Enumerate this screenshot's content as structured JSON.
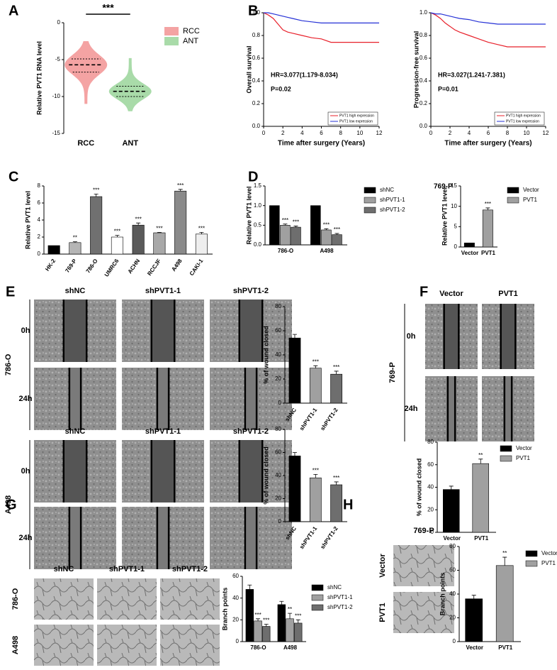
{
  "panels": [
    "A",
    "B",
    "C",
    "D",
    "E",
    "F",
    "G",
    "H"
  ],
  "image_panels": [
    {
      "columns": [
        "shNC",
        "shPVT1-1",
        "shPVT1-2"
      ],
      "rows": [
        "0h",
        "24h"
      ],
      "side_label": "786-O"
    },
    {
      "columns": [
        "shNC",
        "shPVT1-1",
        "shPVT1-2"
      ],
      "rows": [
        "0h",
        "24h"
      ],
      "side_label": "A498"
    },
    {
      "columns": [
        "Vector",
        "PVT1"
      ],
      "rows": [
        "0h",
        "24h"
      ],
      "side_label": "769-P"
    },
    {
      "columns": [
        "shNC",
        "shPVT1-1",
        "shPVT1-2"
      ],
      "rows": [
        "786-O",
        "A498"
      ]
    },
    {
      "title": "769-P",
      "rows": [
        "Vector",
        "PVT1"
      ]
    }
  ],
  "chart_data": [
    {
      "type": "violin",
      "ylabel": "Relative PVT1 RNA level",
      "categories": [
        "RCC",
        "ANT"
      ],
      "annotation": "***",
      "series": [
        {
          "name": "RCC",
          "color": "#f4a3a3",
          "min": -11,
          "q1": -6.7,
          "median": -5.7,
          "q3": -4.9,
          "max": -2.5
        },
        {
          "name": "ANT",
          "color": "#a9dba9",
          "min": -12,
          "q1": -10,
          "median": -9.3,
          "q3": -8.6,
          "max": -4.8
        }
      ],
      "ylim": [
        -15,
        0
      ],
      "yticks": [
        -15,
        -10,
        -5,
        0
      ]
    },
    {
      "type": "line",
      "ylabel": "Overall survival",
      "xlabel": "Time after surgery (Years)",
      "annotations": [
        "HR=3.077(1.179-8.034)",
        "P=0.02"
      ],
      "x": [
        0,
        0.5,
        1,
        1.5,
        2,
        2.5,
        3,
        4,
        5,
        6,
        7,
        8,
        10,
        12
      ],
      "series": [
        {
          "name": "PVT1 high expression",
          "color": "#e8202a",
          "values": [
            1,
            0.98,
            0.95,
            0.9,
            0.85,
            0.83,
            0.82,
            0.8,
            0.78,
            0.77,
            0.74,
            0.74,
            0.74,
            0.74
          ]
        },
        {
          "name": "PVT1 low expression",
          "color": "#2531d6",
          "values": [
            1,
            1,
            0.99,
            0.98,
            0.97,
            0.96,
            0.95,
            0.93,
            0.92,
            0.91,
            0.91,
            0.91,
            0.91,
            0.91
          ]
        }
      ],
      "xlim": [
        0,
        12
      ],
      "xticks": [
        0,
        2,
        4,
        6,
        8,
        10,
        12
      ],
      "ylim": [
        0,
        1
      ],
      "yticks": [
        {
          "value": 0,
          "label": "0.0"
        },
        {
          "value": 0.2,
          "label": "0.2"
        },
        {
          "value": 0.4,
          "label": "0.4"
        },
        {
          "value": 0.6,
          "label": "0.6"
        },
        {
          "value": 0.8,
          "label": "0.8"
        },
        {
          "value": 1,
          "label": "1.0"
        }
      ]
    },
    {
      "type": "line",
      "ylabel": "Progression-free survival",
      "xlabel": "Time after surgery (Years)",
      "annotations": [
        "HR=3.027(1.241-7.381)",
        "P=0.01"
      ],
      "x": [
        0,
        0.5,
        1,
        1.5,
        2,
        2.5,
        3,
        4,
        5,
        6,
        7,
        8,
        10,
        12
      ],
      "series": [
        {
          "name": "PVT1 high expression",
          "color": "#e8202a",
          "values": [
            1,
            0.98,
            0.95,
            0.91,
            0.88,
            0.85,
            0.83,
            0.8,
            0.77,
            0.74,
            0.72,
            0.7,
            0.7,
            0.7
          ]
        },
        {
          "name": "PVT1 low expression",
          "color": "#2531d6",
          "values": [
            1,
            0.99,
            0.99,
            0.98,
            0.97,
            0.96,
            0.95,
            0.94,
            0.92,
            0.91,
            0.9,
            0.9,
            0.9,
            0.9
          ]
        }
      ],
      "xlim": [
        0,
        12
      ],
      "xticks": [
        0,
        2,
        4,
        6,
        8,
        10,
        12
      ],
      "ylim": [
        0,
        1
      ],
      "yticks": [
        {
          "value": 0,
          "label": "0.0"
        },
        {
          "value": 0.2,
          "label": "0.2"
        },
        {
          "value": 0.4,
          "label": "0.4"
        },
        {
          "value": 0.6,
          "label": "0.6"
        },
        {
          "value": 0.8,
          "label": "0.8"
        },
        {
          "value": 1,
          "label": "1.0"
        }
      ]
    },
    {
      "type": "bar",
      "ylabel": "Relative PVT1 level",
      "categories": [
        "HK-2",
        "769-P",
        "786-O",
        "UMRC6",
        "ACHN",
        "RCCJF",
        "A498",
        "CAKI-1"
      ],
      "values": [
        1,
        1.35,
        6.75,
        2,
        3.4,
        2.5,
        7.4,
        2.35
      ],
      "errors": [
        0,
        0.1,
        0.3,
        0.2,
        0.25,
        0.05,
        0.2,
        0.2
      ],
      "significance": [
        null,
        "**",
        "***",
        "***",
        "***",
        "***",
        "***",
        "***"
      ],
      "colors": [
        "#000000",
        "#b5b5b5",
        "#707070",
        "#ffffff",
        "#5a5a5a",
        "#a8a8a8",
        "#8a8a8a",
        "#eeeeee"
      ],
      "ylim": [
        0,
        8
      ],
      "yticks": [
        0,
        2,
        4,
        6,
        8
      ]
    },
    {
      "type": "bar",
      "ylabel": "Relative PVT1 level",
      "categories": [
        "786-O",
        "A498"
      ],
      "series": [
        {
          "name": "shNC",
          "color": "#000000",
          "values": [
            1,
            1
          ],
          "errors": [
            0,
            0
          ],
          "significance": [
            null,
            null
          ]
        },
        {
          "name": "shPVT1-1",
          "color": "#a0a0a0",
          "values": [
            0.5,
            0.38
          ],
          "errors": [
            0.03,
            0.03
          ],
          "significance": [
            "***",
            "***"
          ]
        },
        {
          "name": "shPVT1-2",
          "color": "#6e6e6e",
          "values": [
            0.45,
            0.26
          ],
          "errors": [
            0.03,
            0.03
          ],
          "significance": [
            "***",
            "***"
          ]
        }
      ],
      "ylim": [
        0,
        1.5
      ],
      "yticks": [
        {
          "value": 0,
          "label": "0.0"
        },
        {
          "value": 0.5,
          "label": "0.5"
        },
        {
          "value": 1,
          "label": "1.0"
        },
        {
          "value": 1.5,
          "label": "1.5"
        }
      ]
    },
    {
      "type": "bar",
      "title": "769-P",
      "ylabel": "Relative PVT1 level",
      "categories": [
        "Vector",
        "PVT1"
      ],
      "legend": [
        "Vector",
        "PVT1"
      ],
      "values": [
        1,
        9.1
      ],
      "errors": [
        0,
        0.5
      ],
      "significance": [
        null,
        "***"
      ],
      "colors": [
        "#000000",
        "#a0a0a0"
      ],
      "ylim": [
        0,
        15
      ],
      "yticks": [
        0,
        5,
        10,
        15
      ]
    },
    {
      "type": "bar",
      "ylabel": "% of wound closed",
      "categories": [
        "shNC",
        "shPVT1-1",
        "shPVT1-2"
      ],
      "values": [
        54,
        29,
        24
      ],
      "errors": [
        3,
        2,
        2.5
      ],
      "significance": [
        null,
        "***",
        "***"
      ],
      "colors": [
        "#000000",
        "#a0a0a0",
        "#6e6e6e"
      ],
      "ylim": [
        0,
        80
      ],
      "yticks": [
        0,
        20,
        40,
        60,
        80
      ]
    },
    {
      "type": "bar",
      "ylabel": "% of wound closed",
      "categories": [
        "shNC",
        "shPVT1-1",
        "shPVT1-2"
      ],
      "values": [
        57,
        38,
        32
      ],
      "errors": [
        3,
        3,
        2.5
      ],
      "significance": [
        null,
        "***",
        "***"
      ],
      "colors": [
        "#000000",
        "#a0a0a0",
        "#6e6e6e"
      ],
      "ylim": [
        0,
        80
      ],
      "yticks": [
        0,
        20,
        40,
        60,
        80
      ]
    },
    {
      "type": "bar",
      "ylabel": "% of wound closed",
      "categories": [
        "Vector",
        "PVT1"
      ],
      "legend": [
        "Vector",
        "PVT1"
      ],
      "values": [
        38,
        61
      ],
      "errors": [
        3,
        4
      ],
      "significance": [
        null,
        "**"
      ],
      "colors": [
        "#000000",
        "#a0a0a0"
      ],
      "ylim": [
        0,
        80
      ],
      "yticks": [
        0,
        20,
        40,
        60,
        80
      ]
    },
    {
      "type": "bar",
      "ylabel": "Branch points",
      "categories": [
        "786-O",
        "A498"
      ],
      "series": [
        {
          "name": "shNC",
          "color": "#000000",
          "values": [
            48,
            34
          ],
          "errors": [
            4,
            3
          ],
          "significance": [
            null,
            null
          ]
        },
        {
          "name": "shPVT1-1",
          "color": "#a0a0a0",
          "values": [
            19,
            21
          ],
          "errors": [
            2,
            5
          ],
          "significance": [
            "***",
            "**"
          ]
        },
        {
          "name": "shPVT1-2",
          "color": "#6e6e6e",
          "values": [
            14,
            17
          ],
          "errors": [
            2,
            3
          ],
          "significance": [
            "***",
            "***"
          ]
        }
      ],
      "ylim": [
        0,
        60
      ],
      "yticks": [
        0,
        20,
        40,
        60
      ]
    },
    {
      "type": "bar",
      "ylabel": "Branch points",
      "categories": [
        "Vector",
        "PVT1"
      ],
      "legend": [
        "Vector",
        "PVT1"
      ],
      "values": [
        36,
        64
      ],
      "errors": [
        3,
        7
      ],
      "significance": [
        null,
        "**"
      ],
      "colors": [
        "#000000",
        "#a0a0a0"
      ],
      "ylim": [
        0,
        80
      ],
      "yticks": [
        0,
        20,
        40,
        60,
        80
      ]
    }
  ]
}
